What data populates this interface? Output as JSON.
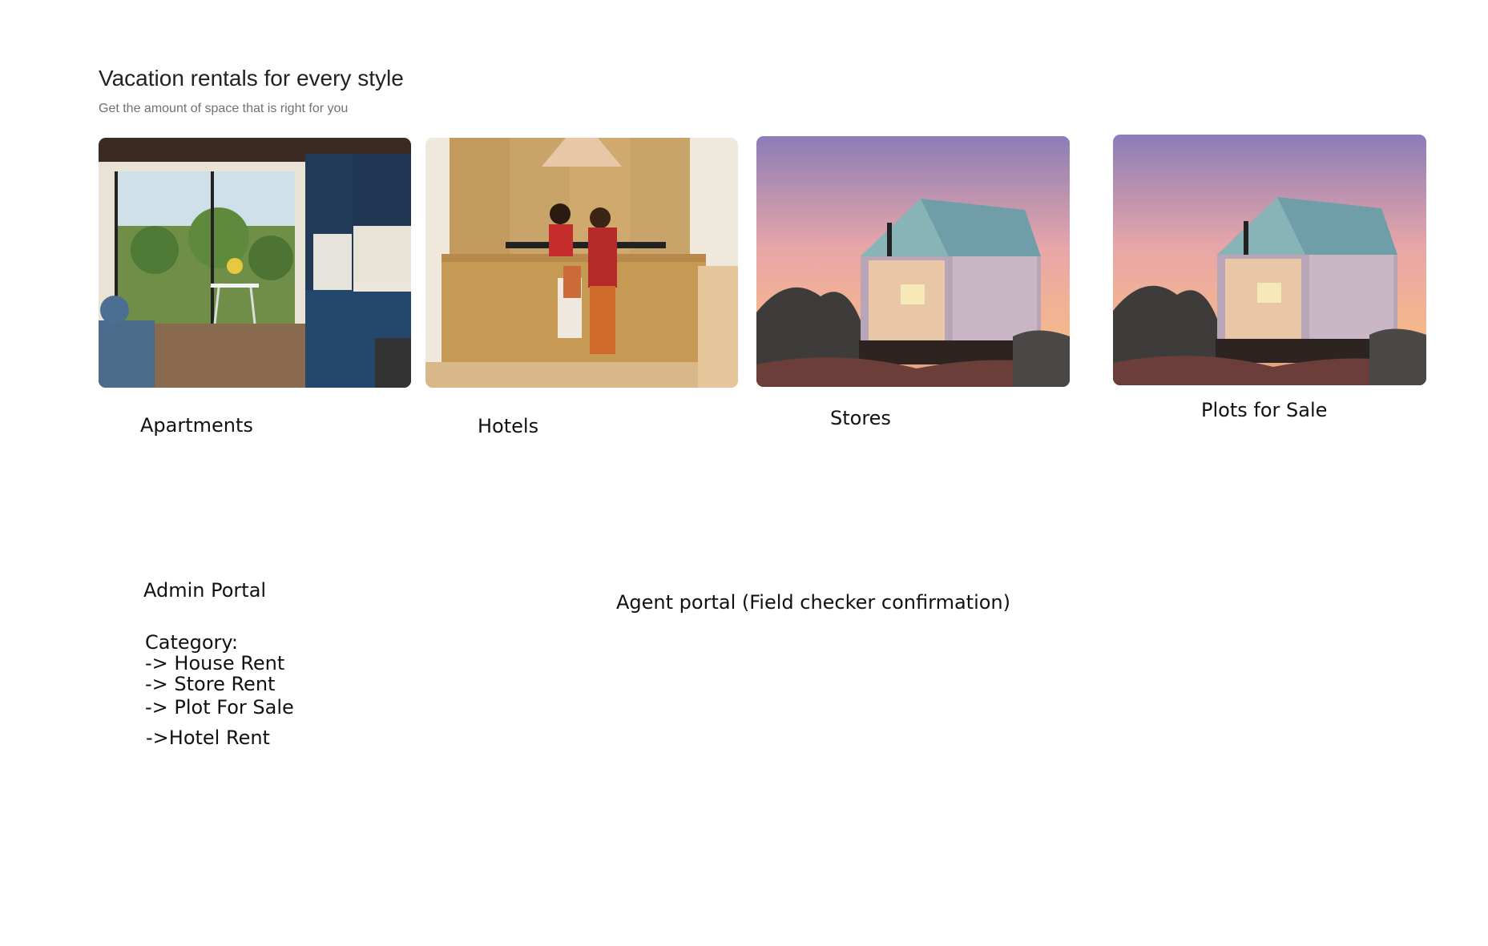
{
  "section": {
    "title": "Vacation rentals for every style",
    "subtitle": "Get the amount of space that is right for you"
  },
  "cards": [
    {
      "label": "Apartments",
      "image": "apartment-interior-image"
    },
    {
      "label": "Hotels",
      "image": "hotel-reception-image"
    },
    {
      "label": "Stores",
      "image": "glass-cabin-sunset-image"
    },
    {
      "label": "Plots for Sale",
      "image": "glass-cabin-sunset-image"
    }
  ],
  "notes": {
    "admin_portal": "Admin Portal",
    "agent_portal": "Agent portal (Field checker confirmation)",
    "category_title": "Category:",
    "categories": [
      "-> House Rent",
      "-> Store Rent",
      "-> Plot For Sale",
      "->Hotel Rent"
    ]
  }
}
